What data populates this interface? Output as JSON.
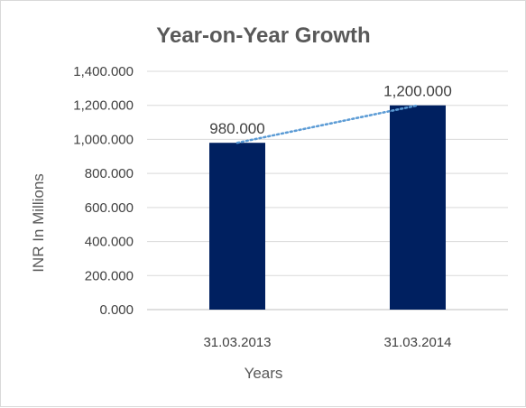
{
  "chart_data": {
    "type": "bar",
    "title": "Year-on-Year Growth",
    "xlabel": "Years",
    "ylabel": "INR In Millions",
    "categories": [
      "31.03.2013",
      "31.03.2014"
    ],
    "values": [
      980,
      1200
    ],
    "value_labels": [
      "980.000",
      "1,200.000"
    ],
    "ylim": [
      0,
      1400
    ],
    "yticks": [
      0,
      200,
      400,
      600,
      800,
      1000,
      1200,
      1400
    ],
    "ytick_labels": [
      "0.000",
      "200.000",
      "400.000",
      "600.000",
      "800.000",
      "1,000.000",
      "1,200.000",
      "1,400.000"
    ],
    "grid": true,
    "trendline": "linear, dotted",
    "colors": {
      "bar": "#002060",
      "trendline": "#5b9bd5"
    }
  }
}
